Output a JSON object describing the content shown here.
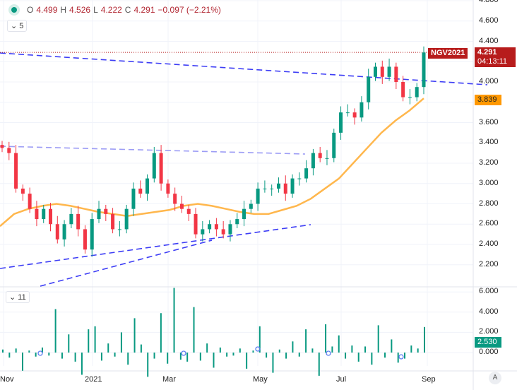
{
  "legend": {
    "o_label": "O",
    "open": "4.499",
    "h_label": "H",
    "high": "4.526",
    "l_label": "L",
    "low": "4.222",
    "c_label": "C",
    "close": "4.291",
    "change": "−0.097 (−2.21%)"
  },
  "price_pane_badge": "5",
  "osc_pane_badge": "11",
  "symbol_tag": "NGV2021",
  "last_price": "4.291",
  "countdown": "04:13:11",
  "ma_value": "3.839",
  "osc_value": "2.530",
  "auto_scale_button": "A",
  "colors": {
    "up": "#089981",
    "down": "#f23645",
    "ma": "#ffb74d",
    "trend": "#3d3df5",
    "trend_light": "#9c9cf5",
    "last": "#b71c1c",
    "osc": "#089981"
  },
  "chart_data": [
    {
      "type": "candlestick",
      "xlabel": "",
      "ylabel": "",
      "x_ticks": [
        "Nov",
        "2021",
        "Mar",
        "May",
        "Jul",
        "Sep"
      ],
      "y_ticks": [
        "4.800",
        "4.600",
        "4.400",
        "4.000",
        "3.600",
        "3.400",
        "3.200",
        "3.000",
        "2.800",
        "2.600",
        "2.400",
        "2.200"
      ],
      "ylim": [
        2.1,
        4.8
      ],
      "closes": [
        3.35,
        3.3,
        2.95,
        2.9,
        2.75,
        2.65,
        2.75,
        2.6,
        2.45,
        2.6,
        2.7,
        2.55,
        2.35,
        2.65,
        2.75,
        2.7,
        2.55,
        2.55,
        2.75,
        2.95,
        2.9,
        3.05,
        3.3,
        3.0,
        2.9,
        2.8,
        2.75,
        2.7,
        2.5,
        2.55,
        2.6,
        2.55,
        2.5,
        2.6,
        2.65,
        2.75,
        2.8,
        2.95,
        2.95,
        2.95,
        3.0,
        2.9,
        3.05,
        3.05,
        3.15,
        3.3,
        3.25,
        3.25,
        3.5,
        3.7,
        3.7,
        3.65,
        3.8,
        4.05,
        4.15,
        4.05,
        4.15,
        4.0,
        3.85,
        3.85,
        3.95,
        4.29
      ],
      "moving_average": [
        2.58,
        2.7,
        2.75,
        2.78,
        2.8,
        2.78,
        2.75,
        2.72,
        2.7,
        2.68,
        2.7,
        2.72,
        2.74,
        2.78,
        2.8,
        2.78,
        2.75,
        2.72,
        2.7,
        2.7,
        2.74,
        2.78,
        2.85,
        2.95,
        3.05,
        3.2,
        3.35,
        3.5,
        3.62,
        3.72,
        3.839
      ]
    },
    {
      "type": "bar",
      "ylim": [
        -2.5,
        6.5
      ],
      "y_ticks": [
        "6.000",
        "4.000",
        "2.000",
        "0.000"
      ],
      "values": [
        0.3,
        -0.5,
        0.4,
        -1.8,
        0.2,
        -0.4,
        0.5,
        -0.3,
        4.3,
        -0.6,
        1.8,
        -0.9,
        -2.2,
        2.3,
        2.6,
        -0.8,
        0.9,
        -0.4,
        2.0,
        -1.2,
        3.4,
        0.8,
        -2.4,
        -0.6,
        3.9,
        -1.1,
        6.4,
        -0.7,
        -0.9,
        4.5,
        -0.8,
        0.9,
        -1.5,
        0.5,
        -0.4,
        -0.3,
        0.4,
        -1.6,
        0.2,
        2.6,
        -0.5,
        -2.0,
        0.3,
        -0.6,
        1.1,
        -0.4,
        2.3,
        0.4,
        -2.3,
        2.8,
        0.6,
        1.7,
        -0.6,
        0.7,
        -0.9,
        0.6,
        -1.2,
        2.7,
        -0.5,
        1.3,
        -1.0,
        -0.6,
        0.7,
        0.4,
        2.53
      ]
    }
  ]
}
